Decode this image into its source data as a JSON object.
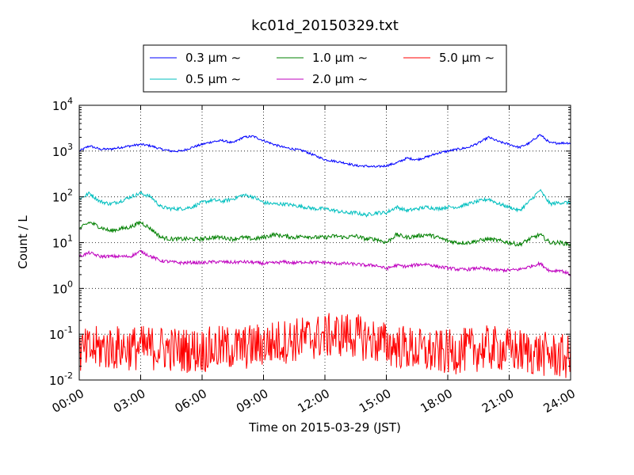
{
  "chart_data": {
    "type": "line",
    "title": "kc01d_20150329.txt",
    "xlabel": "Time on 2015-03-29 (JST)",
    "ylabel": "Count / L",
    "y_scale": "log",
    "ylim": [
      0.01,
      10000
    ],
    "xlim": [
      "00:00",
      "24:00"
    ],
    "x_ticks": [
      "00:00",
      "03:00",
      "06:00",
      "09:00",
      "12:00",
      "15:00",
      "18:00",
      "21:00",
      "24:00"
    ],
    "y_ticks": [
      {
        "base": "10",
        "exp": "-2"
      },
      {
        "base": "10",
        "exp": "-1"
      },
      {
        "base": "10",
        "exp": "0"
      },
      {
        "base": "10",
        "exp": "1"
      },
      {
        "base": "10",
        "exp": "2"
      },
      {
        "base": "10",
        "exp": "3"
      },
      {
        "base": "10",
        "exp": "4"
      }
    ],
    "grid": true,
    "legend_position": "top-center",
    "series": [
      {
        "name": "0.3 μm ∼",
        "color": "#0000ff",
        "noise": 0.025,
        "points": [
          [
            "00:00",
            1000
          ],
          [
            "00:30",
            1300
          ],
          [
            "01:00",
            1100
          ],
          [
            "01:30",
            1100
          ],
          [
            "02:00",
            1200
          ],
          [
            "02:30",
            1300
          ],
          [
            "03:00",
            1400
          ],
          [
            "03:30",
            1300
          ],
          [
            "04:00",
            1100
          ],
          [
            "04:30",
            1000
          ],
          [
            "05:00",
            1000
          ],
          [
            "05:30",
            1200
          ],
          [
            "06:00",
            1400
          ],
          [
            "06:30",
            1600
          ],
          [
            "07:00",
            1700
          ],
          [
            "07:30",
            1500
          ],
          [
            "08:00",
            2000
          ],
          [
            "08:30",
            2100
          ],
          [
            "09:00",
            1700
          ],
          [
            "09:30",
            1400
          ],
          [
            "10:00",
            1200
          ],
          [
            "10:30",
            1100
          ],
          [
            "11:00",
            1000
          ],
          [
            "11:30",
            800
          ],
          [
            "12:00",
            650
          ],
          [
            "12:30",
            600
          ],
          [
            "13:00",
            550
          ],
          [
            "13:30",
            480
          ],
          [
            "14:00",
            470
          ],
          [
            "14:30",
            450
          ],
          [
            "15:00",
            480
          ],
          [
            "15:30",
            550
          ],
          [
            "16:00",
            700
          ],
          [
            "16:30",
            650
          ],
          [
            "17:00",
            750
          ],
          [
            "17:30",
            900
          ],
          [
            "18:00",
            1000
          ],
          [
            "18:30",
            1100
          ],
          [
            "19:00",
            1200
          ],
          [
            "19:30",
            1500
          ],
          [
            "20:00",
            2000
          ],
          [
            "20:30",
            1600
          ],
          [
            "21:00",
            1400
          ],
          [
            "21:30",
            1200
          ],
          [
            "22:00",
            1500
          ],
          [
            "22:30",
            2300
          ],
          [
            "23:00",
            1500
          ],
          [
            "23:30",
            1500
          ],
          [
            "24:00",
            1500
          ]
        ]
      },
      {
        "name": "0.5 μm ∼",
        "color": "#00bfbf",
        "noise": 0.04,
        "points": [
          [
            "00:00",
            90
          ],
          [
            "00:30",
            120
          ],
          [
            "01:00",
            80
          ],
          [
            "01:30",
            70
          ],
          [
            "02:00",
            80
          ],
          [
            "02:30",
            100
          ],
          [
            "03:00",
            120
          ],
          [
            "03:30",
            100
          ],
          [
            "04:00",
            60
          ],
          [
            "04:30",
            55
          ],
          [
            "05:00",
            55
          ],
          [
            "05:30",
            60
          ],
          [
            "06:00",
            75
          ],
          [
            "06:30",
            85
          ],
          [
            "07:00",
            80
          ],
          [
            "07:30",
            90
          ],
          [
            "08:00",
            110
          ],
          [
            "08:30",
            100
          ],
          [
            "09:00",
            75
          ],
          [
            "09:30",
            70
          ],
          [
            "10:00",
            70
          ],
          [
            "10:30",
            65
          ],
          [
            "11:00",
            60
          ],
          [
            "11:30",
            55
          ],
          [
            "12:00",
            55
          ],
          [
            "12:30",
            50
          ],
          [
            "13:00",
            45
          ],
          [
            "13:30",
            45
          ],
          [
            "14:00",
            40
          ],
          [
            "14:30",
            45
          ],
          [
            "15:00",
            45
          ],
          [
            "15:30",
            60
          ],
          [
            "16:00",
            50
          ],
          [
            "16:30",
            55
          ],
          [
            "17:00",
            60
          ],
          [
            "17:30",
            55
          ],
          [
            "18:00",
            60
          ],
          [
            "18:30",
            60
          ],
          [
            "19:00",
            70
          ],
          [
            "19:30",
            80
          ],
          [
            "20:00",
            90
          ],
          [
            "20:30",
            70
          ],
          [
            "21:00",
            60
          ],
          [
            "21:30",
            50
          ],
          [
            "22:00",
            80
          ],
          [
            "22:30",
            140
          ],
          [
            "23:00",
            70
          ],
          [
            "23:30",
            75
          ],
          [
            "24:00",
            75
          ]
        ]
      },
      {
        "name": "1.0 μm ∼",
        "color": "#008000",
        "noise": 0.045,
        "points": [
          [
            "00:00",
            20
          ],
          [
            "00:30",
            28
          ],
          [
            "01:00",
            22
          ],
          [
            "01:30",
            18
          ],
          [
            "02:00",
            20
          ],
          [
            "02:30",
            22
          ],
          [
            "03:00",
            28
          ],
          [
            "03:30",
            20
          ],
          [
            "04:00",
            13
          ],
          [
            "04:30",
            12
          ],
          [
            "05:00",
            12
          ],
          [
            "05:30",
            12
          ],
          [
            "06:00",
            12
          ],
          [
            "06:30",
            13
          ],
          [
            "07:00",
            13
          ],
          [
            "07:30",
            12
          ],
          [
            "08:00",
            13
          ],
          [
            "08:30",
            12
          ],
          [
            "09:00",
            13
          ],
          [
            "09:30",
            15
          ],
          [
            "10:00",
            14
          ],
          [
            "10:30",
            13
          ],
          [
            "11:00",
            14
          ],
          [
            "11:30",
            13
          ],
          [
            "12:00",
            13
          ],
          [
            "12:30",
            14
          ],
          [
            "13:00",
            13
          ],
          [
            "13:30",
            14
          ],
          [
            "14:00",
            12
          ],
          [
            "14:30",
            12
          ],
          [
            "15:00",
            10
          ],
          [
            "15:30",
            15
          ],
          [
            "16:00",
            13
          ],
          [
            "16:30",
            14
          ],
          [
            "17:00",
            15
          ],
          [
            "17:30",
            13
          ],
          [
            "18:00",
            11
          ],
          [
            "18:30",
            10
          ],
          [
            "19:00",
            10
          ],
          [
            "19:30",
            11
          ],
          [
            "20:00",
            12
          ],
          [
            "20:30",
            11
          ],
          [
            "21:00",
            10
          ],
          [
            "21:30",
            9
          ],
          [
            "22:00",
            12
          ],
          [
            "22:30",
            15
          ],
          [
            "23:00",
            10
          ],
          [
            "23:30",
            10
          ],
          [
            "24:00",
            9
          ]
        ]
      },
      {
        "name": "2.0 μm ∼",
        "color": "#bf00bf",
        "noise": 0.035,
        "points": [
          [
            "00:00",
            5
          ],
          [
            "00:30",
            6
          ],
          [
            "01:00",
            5
          ],
          [
            "01:30",
            5
          ],
          [
            "02:00",
            5
          ],
          [
            "02:30",
            5
          ],
          [
            "03:00",
            6.5
          ],
          [
            "03:30",
            5
          ],
          [
            "04:00",
            4
          ],
          [
            "04:30",
            3.8
          ],
          [
            "05:00",
            3.6
          ],
          [
            "05:30",
            3.7
          ],
          [
            "06:00",
            3.6
          ],
          [
            "06:30",
            3.8
          ],
          [
            "07:00",
            3.8
          ],
          [
            "07:30",
            3.7
          ],
          [
            "08:00",
            3.8
          ],
          [
            "08:30",
            3.7
          ],
          [
            "09:00",
            3.5
          ],
          [
            "09:30",
            3.6
          ],
          [
            "10:00",
            3.8
          ],
          [
            "10:30",
            3.6
          ],
          [
            "11:00",
            3.8
          ],
          [
            "11:30",
            3.7
          ],
          [
            "12:00",
            3.7
          ],
          [
            "12:30",
            3.5
          ],
          [
            "13:00",
            3.5
          ],
          [
            "13:30",
            3.4
          ],
          [
            "14:00",
            3.2
          ],
          [
            "14:30",
            3.2
          ],
          [
            "15:00",
            2.7
          ],
          [
            "15:30",
            3.2
          ],
          [
            "16:00",
            3.0
          ],
          [
            "16:30",
            3.3
          ],
          [
            "17:00",
            3.4
          ],
          [
            "17:30",
            3.0
          ],
          [
            "18:00",
            2.8
          ],
          [
            "18:30",
            2.6
          ],
          [
            "19:00",
            2.6
          ],
          [
            "19:30",
            2.8
          ],
          [
            "20:00",
            2.6
          ],
          [
            "20:30",
            2.5
          ],
          [
            "21:00",
            2.5
          ],
          [
            "21:30",
            2.6
          ],
          [
            "22:00",
            3.0
          ],
          [
            "22:30",
            3.5
          ],
          [
            "23:00",
            2.4
          ],
          [
            "23:30",
            2.5
          ],
          [
            "24:00",
            2.0
          ]
        ]
      },
      {
        "name": "5.0 μm ∼",
        "color": "#ff0000",
        "noise": 0.5,
        "points": [
          [
            "00:00",
            0.04
          ],
          [
            "01:00",
            0.05
          ],
          [
            "02:00",
            0.05
          ],
          [
            "03:00",
            0.05
          ],
          [
            "04:00",
            0.05
          ],
          [
            "05:00",
            0.045
          ],
          [
            "06:00",
            0.045
          ],
          [
            "07:00",
            0.05
          ],
          [
            "08:00",
            0.05
          ],
          [
            "09:00",
            0.06
          ],
          [
            "10:00",
            0.07
          ],
          [
            "11:00",
            0.08
          ],
          [
            "12:00",
            0.09
          ],
          [
            "13:00",
            0.1
          ],
          [
            "14:00",
            0.08
          ],
          [
            "15:00",
            0.06
          ],
          [
            "16:00",
            0.05
          ],
          [
            "17:00",
            0.04
          ],
          [
            "18:00",
            0.04
          ],
          [
            "19:00",
            0.045
          ],
          [
            "20:00",
            0.05
          ],
          [
            "21:00",
            0.045
          ],
          [
            "22:00",
            0.04
          ],
          [
            "23:00",
            0.035
          ],
          [
            "24:00",
            0.03
          ]
        ]
      }
    ]
  }
}
